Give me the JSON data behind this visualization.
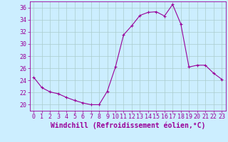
{
  "hours": [
    0,
    1,
    2,
    3,
    4,
    5,
    6,
    7,
    8,
    9,
    10,
    11,
    12,
    13,
    14,
    15,
    16,
    17,
    18,
    19,
    20,
    21,
    22,
    23
  ],
  "values": [
    24.5,
    22.8,
    22.1,
    21.8,
    21.2,
    20.7,
    20.3,
    20.0,
    20.0,
    22.2,
    26.2,
    31.5,
    33.0,
    34.7,
    35.2,
    35.3,
    34.6,
    36.5,
    33.3,
    26.2,
    26.5,
    26.5,
    25.2,
    24.2
  ],
  "ylim": [
    19,
    37
  ],
  "yticks": [
    20,
    22,
    24,
    26,
    28,
    30,
    32,
    34,
    36
  ],
  "xticks": [
    0,
    1,
    2,
    3,
    4,
    5,
    6,
    7,
    8,
    9,
    10,
    11,
    12,
    13,
    14,
    15,
    16,
    17,
    18,
    19,
    20,
    21,
    22,
    23
  ],
  "line_color": "#990099",
  "marker": "+",
  "marker_size": 3,
  "bg_color": "#cceeff",
  "grid_color": "#aacccc",
  "xlabel": "Windchill (Refroidissement éolien,°C)",
  "xlabel_fontsize": 7,
  "tick_fontsize": 6,
  "xlim": [
    -0.5,
    23.5
  ]
}
